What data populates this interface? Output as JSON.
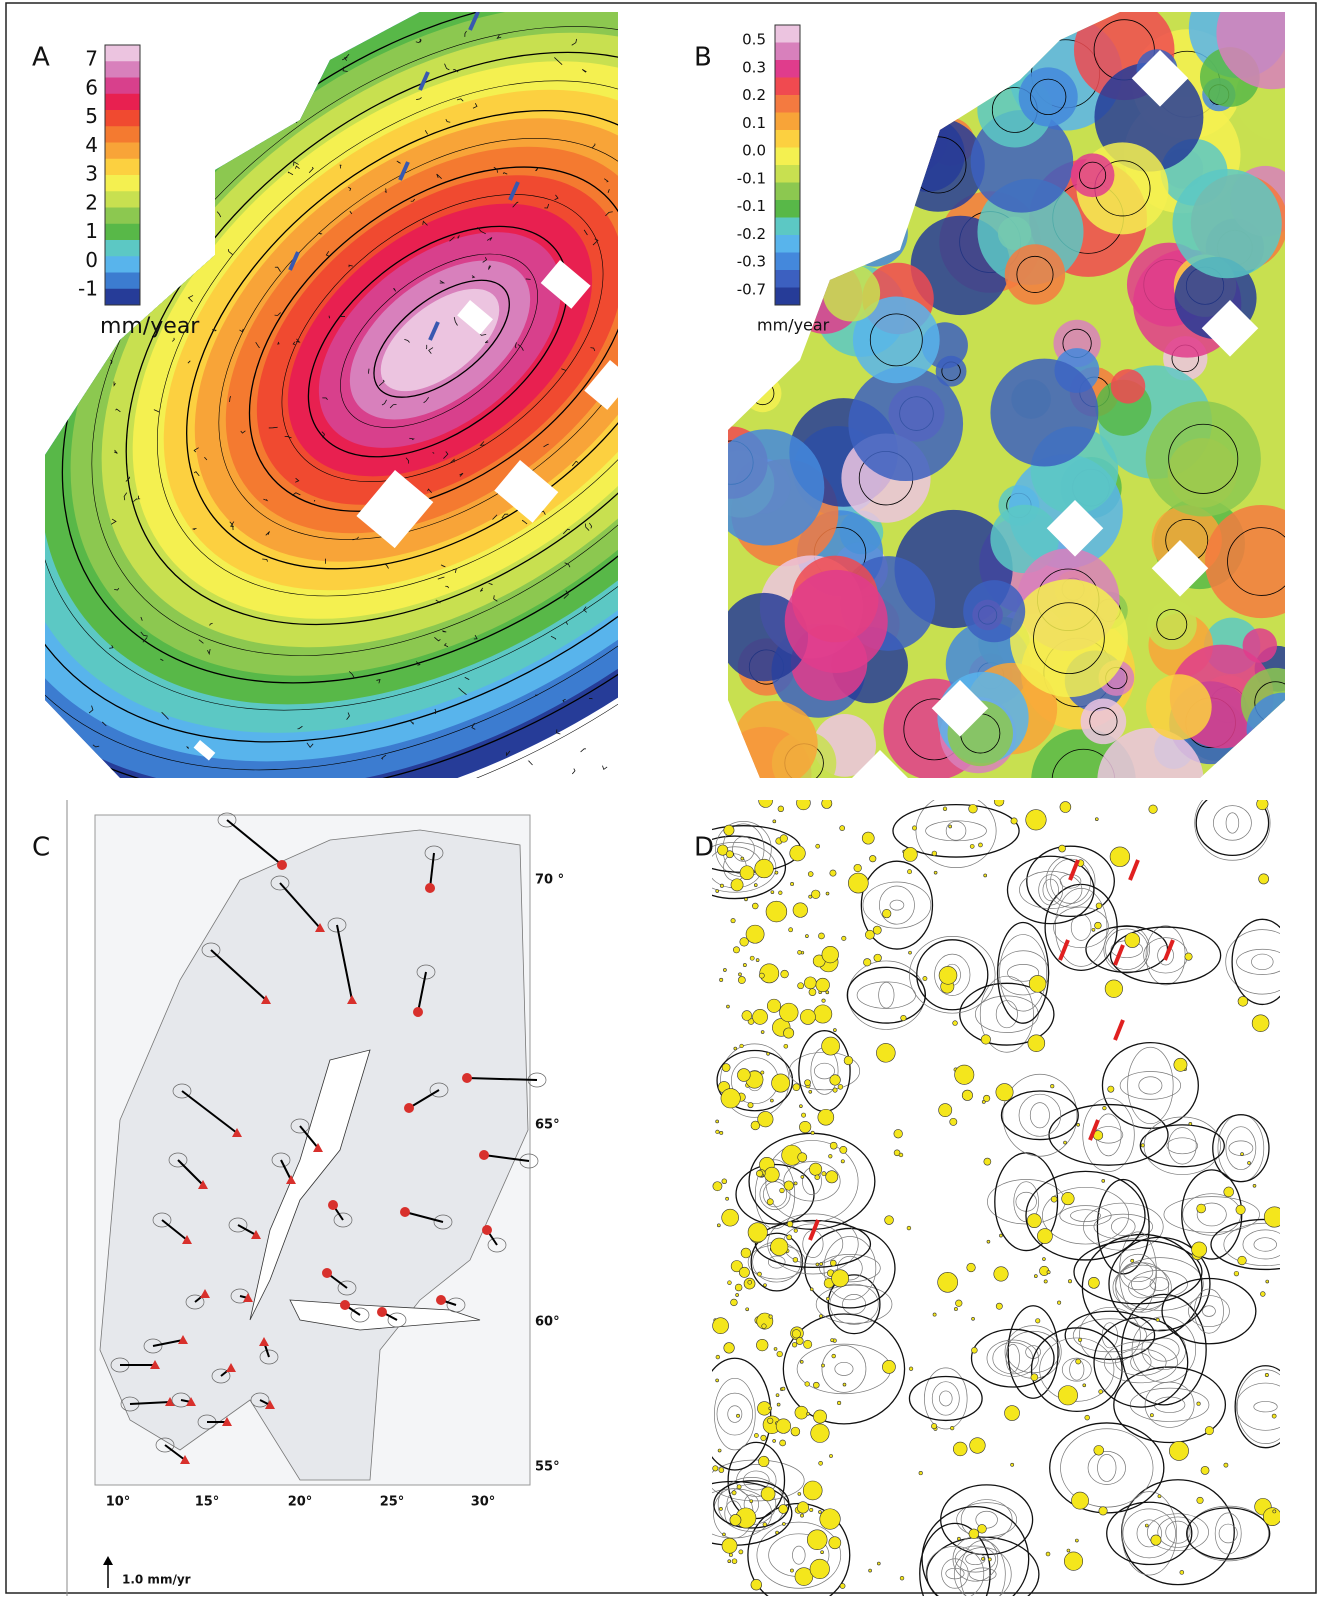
{
  "panels": [
    {
      "label": "A",
      "colorbar": {
        "ticks": [
          "7",
          "6",
          "5",
          "4",
          "3",
          "2",
          "1",
          "0",
          "-1"
        ],
        "unit": "mm/year",
        "colors": [
          "#ecc4e0",
          "#d880bc",
          "#d8408c",
          "#e82050",
          "#f04a30",
          "#f47a30",
          "#f8a438",
          "#fcd040",
          "#f4f050",
          "#c8e050",
          "#8cc850",
          "#58b848",
          "#5cc8c4",
          "#58b4ec",
          "#3c7cd0",
          "#263c98"
        ]
      }
    },
    {
      "label": "B",
      "colorbar": {
        "ticks": [
          "0.5",
          "0.3",
          "0.2",
          "0.1",
          "0.0",
          "-0.1",
          "-0.1",
          "-0.2",
          "-0.3",
          "-0.7"
        ],
        "unit": "mm/year",
        "colors": [
          "#ecc4e0",
          "#d880bc",
          "#e03c8c",
          "#f04a50",
          "#f47a40",
          "#f8a438",
          "#fcd040",
          "#f4f050",
          "#c8e050",
          "#8cc850",
          "#58b848",
          "#5cc8c4",
          "#58b4ec",
          "#4488dc",
          "#3c60c0",
          "#263c98"
        ]
      }
    },
    {
      "label": "C",
      "latitudes": [
        "70 °",
        "65°",
        "60°",
        "55°"
      ],
      "longitudes": [
        "10°",
        "15°",
        "20°",
        "25°",
        "30°"
      ],
      "scale": "1.0 mm/yr"
    },
    {
      "label": "D"
    }
  ]
}
